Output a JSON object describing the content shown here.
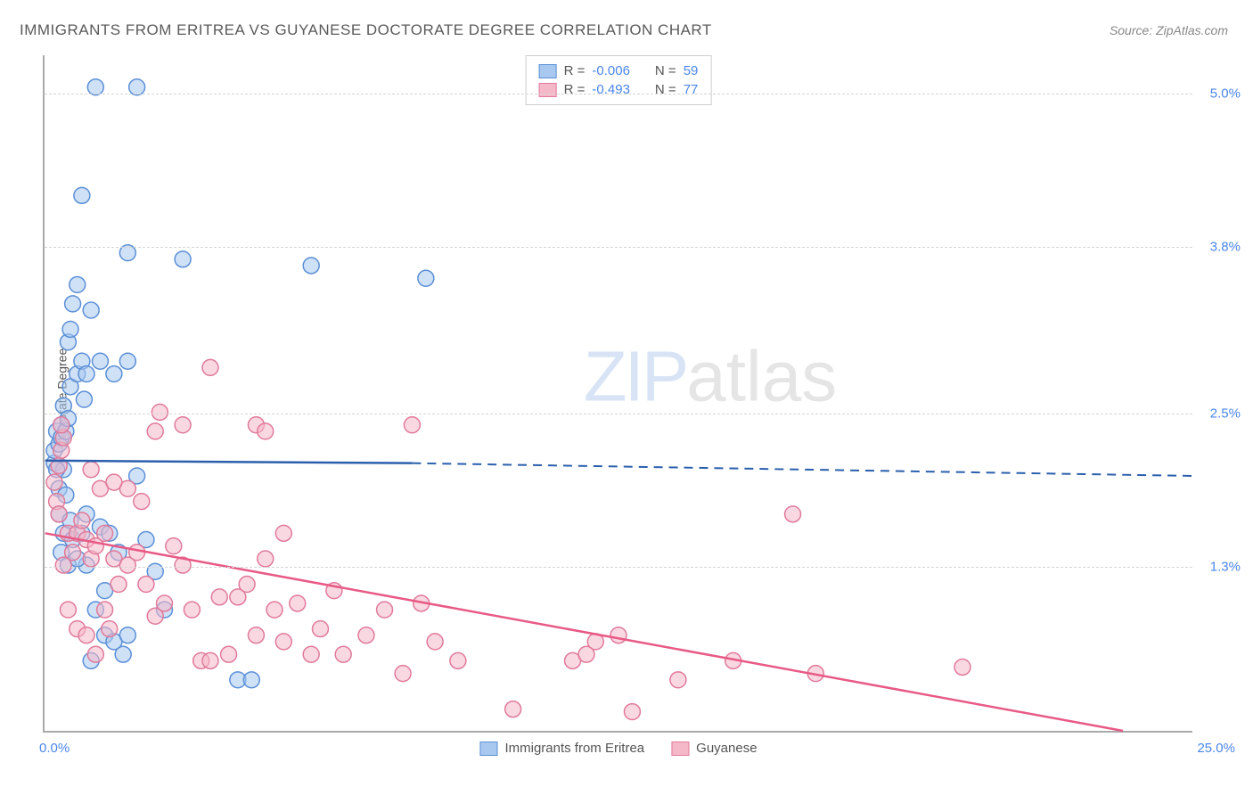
{
  "title": "IMMIGRANTS FROM ERITREA VS GUYANESE DOCTORATE DEGREE CORRELATION CHART",
  "source": "Source: ZipAtlas.com",
  "ylabel": "Doctorate Degree",
  "watermark_zip": "ZIP",
  "watermark_atlas": "atlas",
  "chart": {
    "type": "scatter",
    "xlim": [
      0.0,
      25.0
    ],
    "ylim": [
      0.0,
      5.3
    ],
    "xtick_labels": [
      "0.0%",
      "25.0%"
    ],
    "ytick_positions": [
      1.3,
      2.5,
      3.8,
      5.0
    ],
    "ytick_labels": [
      "1.3%",
      "2.5%",
      "3.8%",
      "5.0%"
    ],
    "background_color": "#ffffff",
    "grid_color": "#d5d5d5",
    "axis_color": "#aaaaaa",
    "marker_radius": 9,
    "marker_opacity": 0.55,
    "series": [
      {
        "name": "Immigrants from Eritrea",
        "color_fill": "#a8c8f0",
        "color_stroke": "#5b8fd6",
        "line_color": "#2b5fad",
        "R": "-0.006",
        "N": "59",
        "regression": {
          "x1": 0.0,
          "y1": 2.12,
          "x2_solid": 8.0,
          "y2_solid": 2.1,
          "x2": 25.0,
          "y2": 2.0
        },
        "points": [
          [
            0.2,
            2.1
          ],
          [
            0.2,
            2.2
          ],
          [
            0.3,
            2.25
          ],
          [
            0.25,
            2.35
          ],
          [
            0.35,
            2.3
          ],
          [
            0.3,
            1.9
          ],
          [
            0.4,
            2.05
          ],
          [
            0.35,
            2.4
          ],
          [
            0.45,
            2.35
          ],
          [
            0.4,
            2.55
          ],
          [
            0.5,
            3.05
          ],
          [
            0.55,
            3.15
          ],
          [
            0.6,
            3.35
          ],
          [
            0.7,
            3.5
          ],
          [
            0.55,
            2.7
          ],
          [
            0.7,
            2.8
          ],
          [
            0.8,
            2.9
          ],
          [
            0.9,
            2.8
          ],
          [
            1.0,
            3.3
          ],
          [
            1.2,
            2.9
          ],
          [
            1.5,
            2.8
          ],
          [
            1.8,
            2.9
          ],
          [
            1.1,
            5.05
          ],
          [
            2.0,
            5.05
          ],
          [
            0.8,
            4.2
          ],
          [
            1.8,
            3.75
          ],
          [
            1.2,
            1.6
          ],
          [
            1.4,
            1.55
          ],
          [
            1.6,
            1.4
          ],
          [
            1.3,
            0.75
          ],
          [
            1.5,
            0.7
          ],
          [
            1.7,
            0.6
          ],
          [
            1.8,
            0.75
          ],
          [
            1.0,
            0.55
          ],
          [
            1.1,
            0.95
          ],
          [
            1.3,
            1.1
          ],
          [
            0.9,
            1.3
          ],
          [
            2.0,
            2.0
          ],
          [
            2.2,
            1.5
          ],
          [
            2.4,
            1.25
          ],
          [
            2.6,
            0.95
          ],
          [
            3.0,
            3.7
          ],
          [
            4.2,
            0.4
          ],
          [
            4.5,
            0.4
          ],
          [
            5.8,
            3.65
          ],
          [
            8.3,
            3.55
          ],
          [
            0.3,
            1.7
          ],
          [
            0.4,
            1.55
          ],
          [
            0.35,
            1.4
          ],
          [
            0.5,
            1.3
          ],
          [
            0.6,
            1.5
          ],
          [
            0.55,
            1.65
          ],
          [
            0.45,
            1.85
          ],
          [
            0.7,
            1.35
          ],
          [
            0.8,
            1.55
          ],
          [
            0.9,
            1.7
          ],
          [
            0.85,
            2.6
          ],
          [
            0.25,
            2.05
          ],
          [
            0.5,
            2.45
          ]
        ]
      },
      {
        "name": "Guyanese",
        "color_fill": "#f5b8c8",
        "color_stroke": "#e07a9a",
        "line_color": "#e85a85",
        "R": "-0.493",
        "N": "77",
        "regression": {
          "x1": 0.0,
          "y1": 1.55,
          "x2_solid": 23.5,
          "y2_solid": 0.0,
          "x2": 23.5,
          "y2": 0.0
        },
        "points": [
          [
            0.2,
            1.95
          ],
          [
            0.25,
            1.8
          ],
          [
            0.3,
            1.7
          ],
          [
            0.3,
            2.08
          ],
          [
            0.35,
            2.2
          ],
          [
            0.4,
            2.3
          ],
          [
            0.35,
            2.4
          ],
          [
            0.5,
            1.55
          ],
          [
            0.6,
            1.4
          ],
          [
            0.7,
            1.55
          ],
          [
            0.8,
            1.65
          ],
          [
            0.9,
            1.5
          ],
          [
            1.0,
            1.35
          ],
          [
            1.1,
            1.45
          ],
          [
            1.3,
            1.55
          ],
          [
            1.5,
            1.35
          ],
          [
            1.6,
            1.15
          ],
          [
            1.8,
            1.3
          ],
          [
            2.0,
            1.4
          ],
          [
            2.2,
            1.15
          ],
          [
            2.4,
            0.9
          ],
          [
            2.6,
            1.0
          ],
          [
            2.8,
            1.45
          ],
          [
            3.0,
            1.3
          ],
          [
            3.2,
            0.95
          ],
          [
            3.4,
            0.55
          ],
          [
            3.6,
            0.55
          ],
          [
            3.8,
            1.05
          ],
          [
            4.0,
            0.6
          ],
          [
            4.2,
            1.05
          ],
          [
            4.4,
            1.15
          ],
          [
            4.6,
            0.75
          ],
          [
            4.8,
            1.35
          ],
          [
            5.0,
            0.95
          ],
          [
            5.2,
            0.7
          ],
          [
            5.5,
            1.0
          ],
          [
            5.8,
            0.6
          ],
          [
            6.0,
            0.8
          ],
          [
            6.3,
            1.1
          ],
          [
            6.5,
            0.6
          ],
          [
            7.0,
            0.75
          ],
          [
            7.4,
            0.95
          ],
          [
            7.8,
            0.45
          ],
          [
            8.2,
            1.0
          ],
          [
            8.5,
            0.7
          ],
          [
            9.0,
            0.55
          ],
          [
            2.5,
            2.5
          ],
          [
            3.6,
            2.85
          ],
          [
            1.8,
            1.9
          ],
          [
            2.1,
            1.8
          ],
          [
            2.4,
            2.35
          ],
          [
            3.0,
            2.4
          ],
          [
            4.6,
            2.4
          ],
          [
            4.8,
            2.35
          ],
          [
            5.2,
            1.55
          ],
          [
            8.0,
            2.4
          ],
          [
            11.5,
            0.55
          ],
          [
            12.0,
            0.7
          ],
          [
            12.5,
            0.75
          ],
          [
            13.8,
            0.4
          ],
          [
            11.8,
            0.6
          ],
          [
            10.2,
            0.17
          ],
          [
            12.8,
            0.15
          ],
          [
            16.3,
            1.7
          ],
          [
            15.0,
            0.55
          ],
          [
            16.8,
            0.45
          ],
          [
            20.0,
            0.5
          ],
          [
            0.5,
            0.95
          ],
          [
            0.7,
            0.8
          ],
          [
            0.9,
            0.75
          ],
          [
            1.1,
            0.6
          ],
          [
            1.3,
            0.95
          ],
          [
            1.4,
            0.8
          ],
          [
            1.0,
            2.05
          ],
          [
            1.2,
            1.9
          ],
          [
            1.5,
            1.95
          ],
          [
            0.4,
            1.3
          ]
        ]
      }
    ],
    "legend_bottom": [
      {
        "label": "Immigrants from Eritrea",
        "fill": "#a8c8f0",
        "stroke": "#5b8fd6"
      },
      {
        "label": "Guyanese",
        "fill": "#f5b8c8",
        "stroke": "#e07a9a"
      }
    ],
    "legend_top_labels": {
      "R": "R =",
      "N": "N ="
    }
  }
}
